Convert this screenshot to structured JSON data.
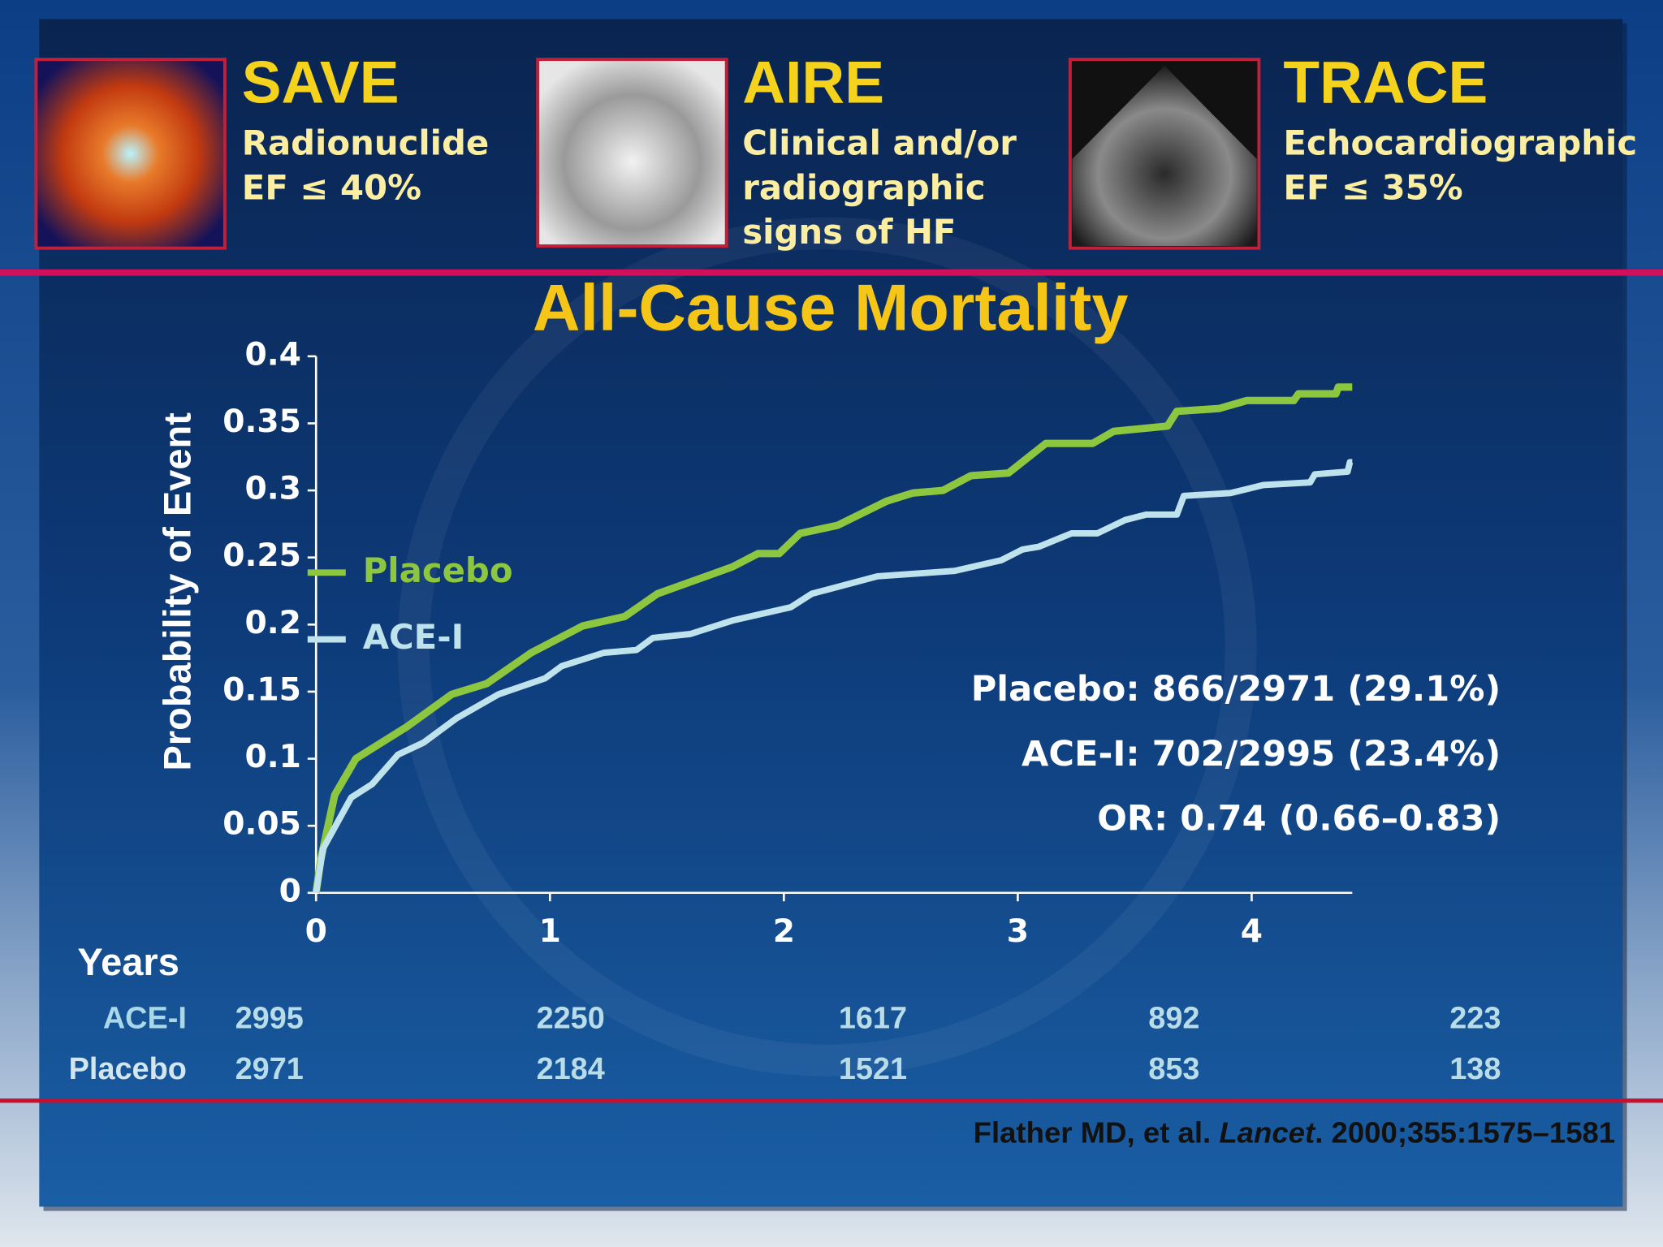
{
  "header": {
    "trials": [
      {
        "name": "SAVE",
        "lines": [
          "Radionuclide",
          "EF ≤ 40%"
        ]
      },
      {
        "name": "AIRE",
        "lines": [
          "Clinical and/or",
          "radiographic",
          "signs of HF"
        ]
      },
      {
        "name": "TRACE",
        "lines": [
          "Echocardiographic",
          "EF ≤ 35%"
        ]
      }
    ]
  },
  "chart_data": {
    "type": "line",
    "title": "All-Cause Mortality",
    "y_label": "Probability of Event",
    "xlim": [
      0,
      4.43
    ],
    "xticks": [
      0,
      1,
      2,
      3,
      4
    ],
    "ylim": [
      0,
      0.4
    ],
    "yticks": [
      0,
      0.05,
      0.1,
      0.15,
      0.2,
      0.25,
      0.3,
      0.35,
      0.4
    ],
    "series": [
      {
        "name": "Placebo",
        "color": "#8dc63f",
        "x": [
          0,
          0.02,
          0.08,
          0.17,
          0.39,
          0.58,
          0.73,
          0.92,
          1.14,
          1.32,
          1.46,
          1.78,
          1.89,
          1.98,
          2.07,
          2.23,
          2.44,
          2.55,
          2.68,
          2.8,
          2.96,
          3.12,
          3.32,
          3.41,
          3.64,
          3.68,
          3.86,
          3.98,
          4.18,
          4.2,
          4.36,
          4.37,
          4.43
        ],
        "values": [
          0,
          0.025,
          0.073,
          0.1,
          0.124,
          0.148,
          0.156,
          0.179,
          0.199,
          0.206,
          0.223,
          0.243,
          0.253,
          0.253,
          0.268,
          0.274,
          0.292,
          0.298,
          0.3,
          0.311,
          0.313,
          0.335,
          0.335,
          0.344,
          0.348,
          0.359,
          0.361,
          0.367,
          0.367,
          0.372,
          0.372,
          0.377,
          0.377
        ]
      },
      {
        "name": "ACE-I",
        "color": "#bfe3ec",
        "x": [
          0,
          0.03,
          0.15,
          0.24,
          0.35,
          0.46,
          0.6,
          0.78,
          0.98,
          1.05,
          1.23,
          1.37,
          1.44,
          1.6,
          1.78,
          2.03,
          2.12,
          2.4,
          2.73,
          2.93,
          3.02,
          3.09,
          3.23,
          3.34,
          3.46,
          3.55,
          3.68,
          3.71,
          3.91,
          4.05,
          4.25,
          4.27,
          4.41,
          4.42,
          4.43
        ],
        "values": [
          0,
          0.033,
          0.071,
          0.081,
          0.103,
          0.112,
          0.13,
          0.148,
          0.16,
          0.169,
          0.179,
          0.181,
          0.19,
          0.193,
          0.203,
          0.213,
          0.223,
          0.236,
          0.24,
          0.248,
          0.256,
          0.258,
          0.268,
          0.268,
          0.278,
          0.282,
          0.282,
          0.296,
          0.298,
          0.304,
          0.306,
          0.312,
          0.314,
          0.321,
          0.321
        ]
      }
    ],
    "annotations": [
      "Placebo: 866/2971 (29.1%)",
      "ACE-I: 702/2995 (23.4%)",
      "OR: 0.74 (0.66–0.83)"
    ],
    "risk_table": {
      "title": "Years",
      "rows": [
        {
          "label": "ACE-I",
          "values": [
            "2995",
            "2250",
            "1617",
            "892",
            "223"
          ]
        },
        {
          "label": "Placebo",
          "values": [
            "2971",
            "2184",
            "1521",
            "853",
            "138"
          ]
        }
      ]
    }
  },
  "citation": {
    "parts": [
      "Flather MD, et al. ",
      "Lancet",
      ". 2000;355:1575–1581"
    ]
  }
}
